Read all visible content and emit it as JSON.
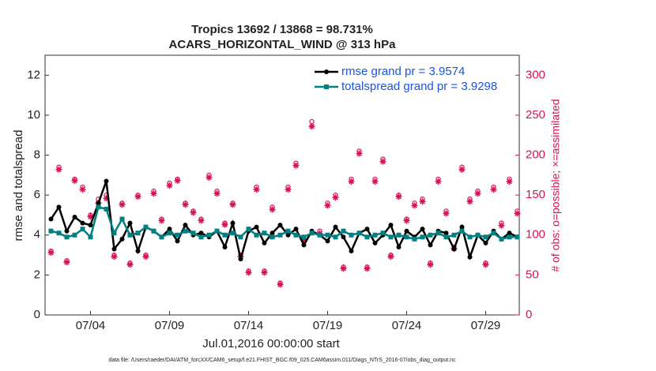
{
  "chart_data": {
    "type": "line",
    "title": "Tropics 13692 / 13868 = 98.731%",
    "subtitle": "ACARS_HORIZONTAL_WIND @ 313 hPa",
    "xlabel": "Jul.01,2016 00:00:00 start",
    "ylabel": "rmse and totalspread",
    "y2label": "# of obs: o=possible; ×=assimilated",
    "footnote": "data file: /Users/raeder/DAI/ATM_forcXX/CAM6_setup/f.e21.FHIST_BGC.f09_025.CAM6assim.011/Diags_NTrS_2016-07/obs_diag_output.nc",
    "legend": "upper right",
    "xlim": [
      0.125,
      30.125
    ],
    "xticks": [
      {
        "value": 3,
        "label": "07/04"
      },
      {
        "value": 8,
        "label": "07/09"
      },
      {
        "value": 13,
        "label": "07/14"
      },
      {
        "value": 18,
        "label": "07/19"
      },
      {
        "value": 23,
        "label": "07/24"
      },
      {
        "value": 28,
        "label": "07/29"
      }
    ],
    "ylim": [
      0,
      13
    ],
    "yticks": [
      0,
      2,
      4,
      6,
      8,
      10,
      12
    ],
    "y2lim": [
      0,
      325
    ],
    "y2ticks": [
      0,
      50,
      100,
      150,
      200,
      250,
      300
    ],
    "x": [
      0.5,
      1,
      1.5,
      2,
      2.5,
      3,
      3.5,
      4,
      4.5,
      5,
      5.5,
      6,
      6.5,
      7,
      7.5,
      8,
      8.5,
      9,
      9.5,
      10,
      10.5,
      11,
      11.5,
      12,
      12.5,
      13,
      13.5,
      14,
      14.5,
      15,
      15.5,
      16,
      16.5,
      17,
      17.5,
      18,
      18.5,
      19,
      19.5,
      20,
      20.5,
      21,
      21.5,
      22,
      22.5,
      23,
      23.5,
      24,
      24.5,
      25,
      25.5,
      26,
      26.5,
      27,
      27.5,
      28,
      28.5,
      29,
      29.5,
      30
    ],
    "series": [
      {
        "name": "rmse grand pr = 3.9574",
        "color": "#000000",
        "marker": "o",
        "legend": true,
        "values": [
          4.8,
          5.4,
          4.2,
          4.9,
          4.6,
          4.5,
          5.6,
          6.7,
          3.3,
          3.8,
          4.6,
          3.2,
          4.4,
          4.2,
          3.9,
          4.3,
          3.7,
          4.5,
          4.0,
          4.1,
          3.9,
          4.2,
          3.4,
          4.6,
          2.8,
          4.2,
          4.4,
          3.6,
          4.1,
          4.5,
          4.0,
          4.3,
          3.5,
          4.2,
          4.0,
          3.7,
          4.4,
          3.9,
          3.2,
          4.1,
          4.3,
          3.6,
          4.0,
          4.5,
          3.4,
          4.2,
          3.9,
          4.3,
          3.5,
          4.2,
          4.1,
          3.3,
          4.4,
          2.9,
          4.0,
          3.6,
          4.2,
          3.8,
          4.1,
          3.9
        ]
      },
      {
        "name": "totalspread grand pr = 3.9298",
        "color": "#008080",
        "marker": "s",
        "legend": true,
        "values": [
          4.2,
          4.1,
          3.9,
          4.0,
          4.3,
          3.9,
          5.4,
          5.3,
          4.1,
          4.8,
          4.0,
          4.1,
          4.4,
          4.2,
          3.9,
          4.1,
          4.0,
          4.2,
          4.1,
          3.9,
          4.0,
          4.2,
          4.0,
          4.1,
          3.9,
          4.3,
          4.0,
          4.1,
          3.9,
          4.0,
          4.2,
          4.0,
          3.9,
          4.1,
          4.0,
          4.0,
          3.9,
          4.2,
          4.0,
          4.1,
          3.9,
          4.0,
          4.1,
          3.9,
          4.0,
          3.9,
          3.8,
          3.9,
          4.0,
          4.1,
          3.9,
          4.0,
          4.2,
          3.9,
          4.0,
          3.9,
          4.1,
          3.8,
          3.9,
          3.9
        ]
      },
      {
        "name": "possible",
        "color": "#d0145a",
        "marker": "circle",
        "axis": "y2",
        "values": [
          80,
          185,
          68,
          170,
          160,
          125,
          145,
          150,
          75,
          140,
          65,
          150,
          75,
          155,
          120,
          165,
          170,
          140,
          130,
          120,
          175,
          155,
          115,
          140,
          75,
          55,
          160,
          55,
          135,
          40,
          160,
          190,
          95,
          242,
          105,
          140,
          150,
          60,
          170,
          205,
          60,
          170,
          195,
          75,
          150,
          120,
          140,
          145,
          65,
          170,
          130,
          85,
          185,
          145,
          155,
          65,
          160,
          115,
          170,
          130
        ]
      },
      {
        "name": "assimilated",
        "color": "#d0145a",
        "marker": "star",
        "axis": "y2",
        "values": [
          78,
          182,
          66,
          168,
          157,
          123,
          140,
          146,
          73,
          138,
          63,
          148,
          73,
          152,
          118,
          162,
          168,
          138,
          128,
          118,
          172,
          152,
          113,
          138,
          73,
          53,
          157,
          53,
          132,
          38,
          157,
          187,
          93,
          236,
          102,
          137,
          147,
          58,
          167,
          202,
          58,
          167,
          192,
          73,
          148,
          118,
          137,
          142,
          63,
          167,
          127,
          83,
          182,
          142,
          152,
          63,
          157,
          112,
          167,
          127
        ]
      }
    ]
  }
}
